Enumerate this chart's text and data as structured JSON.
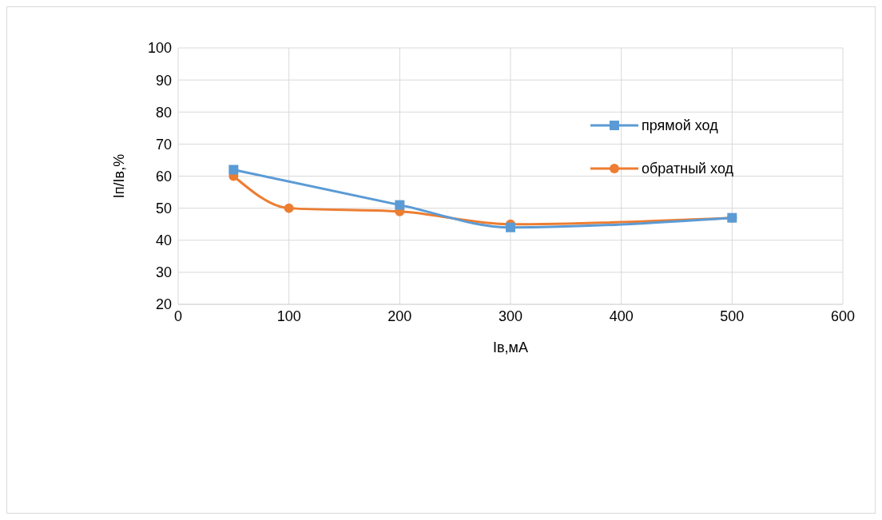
{
  "chart_data": {
    "type": "line",
    "xlabel": "Iв,мА",
    "ylabel": "Iп/Iв,%",
    "xlim": [
      0,
      600
    ],
    "xticks": [
      0,
      100,
      200,
      300,
      400,
      500,
      600
    ],
    "ylim": [
      20,
      100
    ],
    "yticks": [
      20,
      30,
      40,
      50,
      60,
      70,
      80,
      90,
      100
    ],
    "grid": true,
    "legend": "top right",
    "series": [
      {
        "name": "прямой ход",
        "color": "#5b9bd5",
        "marker": "square",
        "x": [
          50,
          200,
          300,
          500
        ],
        "values": [
          62,
          51,
          44,
          47
        ]
      },
      {
        "name": "обратный ход",
        "color": "#ed7d31",
        "marker": "circle",
        "x": [
          50,
          100,
          200,
          300,
          500
        ],
        "values": [
          60,
          50,
          49,
          45,
          47
        ]
      }
    ]
  }
}
